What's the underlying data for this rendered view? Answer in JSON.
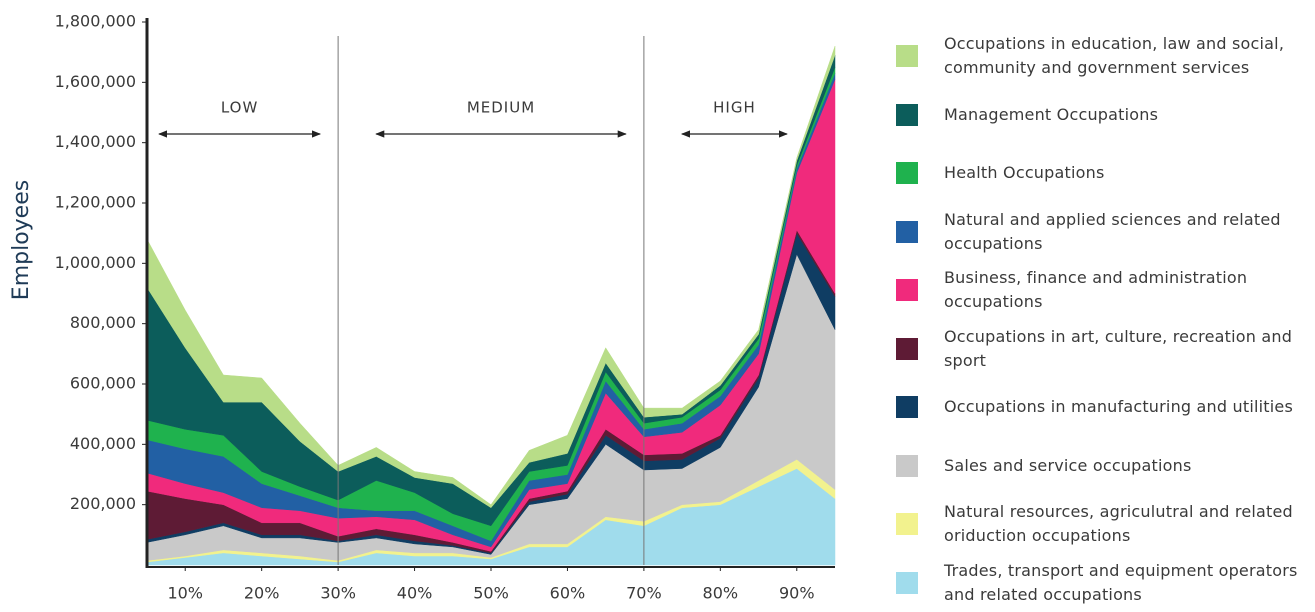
{
  "chart_data": {
    "type": "stacked-area",
    "ylabel": "Employees",
    "x": [
      5,
      10,
      15,
      20,
      25,
      30,
      35,
      40,
      45,
      50,
      55,
      60,
      65,
      70,
      75,
      80,
      85,
      90,
      95
    ],
    "xlim": [
      5,
      95
    ],
    "xticks": [
      {
        "value": 10,
        "label": "10%"
      },
      {
        "value": 20,
        "label": "20%"
      },
      {
        "value": 30,
        "label": "30%"
      },
      {
        "value": 40,
        "label": "40%"
      },
      {
        "value": 50,
        "label": "50%"
      },
      {
        "value": 60,
        "label": "60%"
      },
      {
        "value": 70,
        "label": "70%"
      },
      {
        "value": 80,
        "label": "80%"
      },
      {
        "value": 90,
        "label": "90%"
      }
    ],
    "ylim": [
      0,
      1800000
    ],
    "yticks": [
      {
        "value": 200000,
        "label": "200,000"
      },
      {
        "value": 400000,
        "label": "400,000"
      },
      {
        "value": 600000,
        "label": "600,000"
      },
      {
        "value": 800000,
        "label": "800,000"
      },
      {
        "value": 1000000,
        "label": "1,000,000"
      },
      {
        "value": 1200000,
        "label": "1,200,000"
      },
      {
        "value": 1400000,
        "label": "1,400,000"
      },
      {
        "value": 1600000,
        "label": "1,600,000"
      },
      {
        "value": 1800000,
        "label": "1,800,000"
      }
    ],
    "regions": [
      {
        "text": "LOW",
        "from": 5,
        "to": 30
      },
      {
        "text": "MEDIUM",
        "from": 30,
        "to": 70
      },
      {
        "text": "HIGH",
        "from": 70,
        "to": 95
      }
    ],
    "series": [
      {
        "name": "Occupations in education, law and social, community and government services",
        "color": "#b8dd88",
        "values": [
          160000,
          125000,
          90000,
          80000,
          60000,
          20000,
          30000,
          20000,
          20000,
          10000,
          40000,
          60000,
          50000,
          30000,
          20000,
          15000,
          15000,
          10000,
          30000
        ]
      },
      {
        "name": "Management Occupations",
        "color": "#0c5d5b",
        "values": [
          440000,
          270000,
          110000,
          230000,
          150000,
          95000,
          80000,
          50000,
          100000,
          60000,
          30000,
          40000,
          30000,
          20000,
          10000,
          15000,
          15000,
          15000,
          40000
        ]
      },
      {
        "name": "Health Occupations",
        "color": "#1fb24e",
        "values": [
          65000,
          65000,
          70000,
          40000,
          30000,
          25000,
          100000,
          60000,
          40000,
          50000,
          30000,
          30000,
          30000,
          20000,
          20000,
          20000,
          20000,
          10000,
          20000
        ]
      },
      {
        "name": "Natural and applied sciences and related occupations",
        "color": "#2260a4",
        "values": [
          110000,
          115000,
          120000,
          80000,
          50000,
          35000,
          20000,
          30000,
          30000,
          20000,
          30000,
          30000,
          40000,
          25000,
          30000,
          30000,
          30000,
          15000,
          20000
        ]
      },
      {
        "name": "Business, finance and administration occupations",
        "color": "#f02a7c",
        "values": [
          60000,
          50000,
          40000,
          50000,
          40000,
          60000,
          40000,
          50000,
          25000,
          15000,
          30000,
          25000,
          120000,
          60000,
          70000,
          100000,
          70000,
          190000,
          710000
        ]
      },
      {
        "name": "Occupations in art, culture, recreation and sport",
        "color": "#5e1b35",
        "values": [
          160000,
          110000,
          60000,
          40000,
          40000,
          15000,
          20000,
          20000,
          10000,
          5000,
          10000,
          10000,
          20000,
          20000,
          20000,
          10000,
          10000,
          10000,
          10000
        ]
      },
      {
        "name": "Occupations in manufacturing and utilities",
        "color": "#0f3d63",
        "values": [
          10000,
          10000,
          10000,
          10000,
          10000,
          5000,
          10000,
          10000,
          5000,
          5000,
          10000,
          15000,
          30000,
          30000,
          30000,
          30000,
          30000,
          70000,
          110000
        ]
      },
      {
        "name": "Sales and service occupations",
        "color": "#c9c9c9",
        "values": [
          60000,
          70000,
          80000,
          50000,
          60000,
          60000,
          40000,
          30000,
          20000,
          10000,
          130000,
          150000,
          240000,
          170000,
          120000,
          180000,
          310000,
          680000,
          530000
        ]
      },
      {
        "name": "Natural resources, agriculutral and related oriduction occupations",
        "color": "#f2f28e",
        "values": [
          5000,
          5000,
          10000,
          10000,
          10000,
          5000,
          10000,
          10000,
          10000,
          5000,
          10000,
          10000,
          10000,
          15000,
          10000,
          10000,
          20000,
          30000,
          30000
        ]
      },
      {
        "name": "Trades, transport and equipment operators and related occupations",
        "color": "#a0dcec",
        "values": [
          10000,
          25000,
          40000,
          30000,
          20000,
          10000,
          40000,
          30000,
          30000,
          20000,
          60000,
          60000,
          150000,
          130000,
          190000,
          200000,
          260000,
          320000,
          220000
        ]
      }
    ]
  }
}
